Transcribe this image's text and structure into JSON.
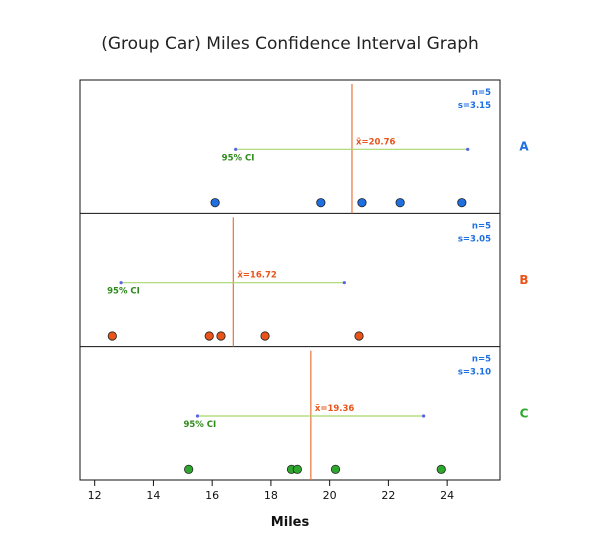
{
  "chart_data": {
    "type": "scatter",
    "title": "(Group Car) Miles Confidence Interval Graph",
    "xlabel": "Miles",
    "xlim": [
      11.5,
      25.8
    ],
    "xticks": [
      12,
      14,
      16,
      18,
      20,
      22,
      24
    ],
    "ci_label": "95% CI",
    "mean_prefix": "x̄=",
    "colors": {
      "mean_line": "#e8733a",
      "ci_line": "#a8d86a",
      "ci_end": "#5566dd",
      "mean_text": "#e8541a",
      "ci_text": "#2d8a1a",
      "stat_text": "#1f6fe0"
    },
    "groups": [
      {
        "name": "A",
        "color": "#1f6fe0",
        "n_label": "n=5",
        "s_label": "s=3.15",
        "mean": 20.76,
        "mean_label": "20.76",
        "ci": [
          16.8,
          24.7
        ],
        "points": [
          16.1,
          19.7,
          21.1,
          22.4,
          24.5
        ]
      },
      {
        "name": "B",
        "color": "#e8541a",
        "n_label": "n=5",
        "s_label": "s=3.05",
        "mean": 16.72,
        "mean_label": "16.72",
        "ci": [
          12.9,
          20.5
        ],
        "points": [
          12.6,
          15.9,
          16.3,
          17.8,
          21.0
        ]
      },
      {
        "name": "C",
        "color": "#2da82d",
        "n_label": "n=5",
        "s_label": "s=3.10",
        "mean": 19.36,
        "mean_label": "19.36",
        "ci": [
          15.5,
          23.2
        ],
        "points": [
          15.2,
          18.7,
          18.9,
          20.2,
          23.8
        ]
      }
    ]
  }
}
